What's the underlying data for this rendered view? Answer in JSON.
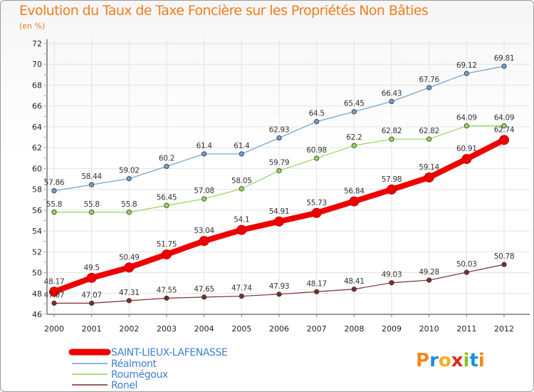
{
  "title": "Evolution du Taux de Taxe Foncière sur les Propriétés Non Bâties",
  "unit": "(en %)",
  "logo": {
    "text": "Proxiti",
    "colors": [
      "#f28a1c",
      "#1c8ed8",
      "#f2b21c",
      "#e0281c",
      "#8cc31c",
      "#1c8ed8",
      "#f28a1c"
    ]
  },
  "chart_data": {
    "type": "line",
    "title": "Evolution du Taux de Taxe Foncière sur les Propriétés Non Bâties",
    "xlabel": "",
    "ylabel": "(en %)",
    "x": [
      "2000",
      "2001",
      "2002",
      "2003",
      "2004",
      "2005",
      "2006",
      "2007",
      "2008",
      "2009",
      "2010",
      "2011",
      "2012"
    ],
    "ylim": [
      46,
      72
    ],
    "yticks": [
      46,
      48,
      50,
      52,
      54,
      56,
      58,
      60,
      62,
      64,
      66,
      68,
      70,
      72
    ],
    "legend_position": "bottom-left",
    "series": [
      {
        "name": "SAINT-LIEUX-LAFENASSE",
        "color": "#ee0000",
        "values": [
          48.17,
          49.5,
          50.49,
          51.75,
          53.04,
          54.1,
          54.91,
          55.73,
          56.84,
          57.98,
          59.14,
          60.91,
          62.74
        ],
        "labels": [
          "48.17",
          "49.5",
          "50.49",
          "51.75",
          "53.04",
          "54.1",
          "54.91",
          "55.73",
          "56.84",
          "57.98",
          "59.14",
          "60.91",
          "62.74"
        ],
        "bold": true
      },
      {
        "name": "Réalmont",
        "color": "#6a9fd2",
        "values": [
          57.86,
          58.44,
          59.02,
          60.2,
          61.4,
          61.4,
          62.93,
          64.5,
          65.45,
          66.43,
          67.76,
          69.12,
          69.81
        ],
        "labels": [
          "57.86",
          "58.44",
          "59.02",
          "60.2",
          "61.4",
          "61.4",
          "62.93",
          "64.5",
          "65.45",
          "66.43",
          "67.76",
          "69.12",
          "69.81"
        ]
      },
      {
        "name": "Roumégoux",
        "color": "#96d45a",
        "values": [
          55.8,
          55.8,
          55.8,
          56.45,
          57.08,
          58.05,
          59.79,
          60.98,
          62.2,
          62.82,
          62.82,
          64.09,
          64.09
        ],
        "labels": [
          "55.8",
          "55.8",
          "55.8",
          "56.45",
          "57.08",
          "58.05",
          "59.79",
          "60.98",
          "62.2",
          "62.82",
          "62.82",
          "64.09",
          "64.09"
        ]
      },
      {
        "name": "Ronel",
        "color": "#7a2e2e",
        "values": [
          47.07,
          47.07,
          47.31,
          47.55,
          47.65,
          47.74,
          47.93,
          48.17,
          48.41,
          49.03,
          49.28,
          50.03,
          50.78
        ],
        "labels": [
          "47.07",
          "47.07",
          "47.31",
          "47.55",
          "47.65",
          "47.74",
          "47.93",
          "48.17",
          "48.41",
          "49.03",
          "49.28",
          "50.03",
          "50.78"
        ]
      }
    ]
  }
}
